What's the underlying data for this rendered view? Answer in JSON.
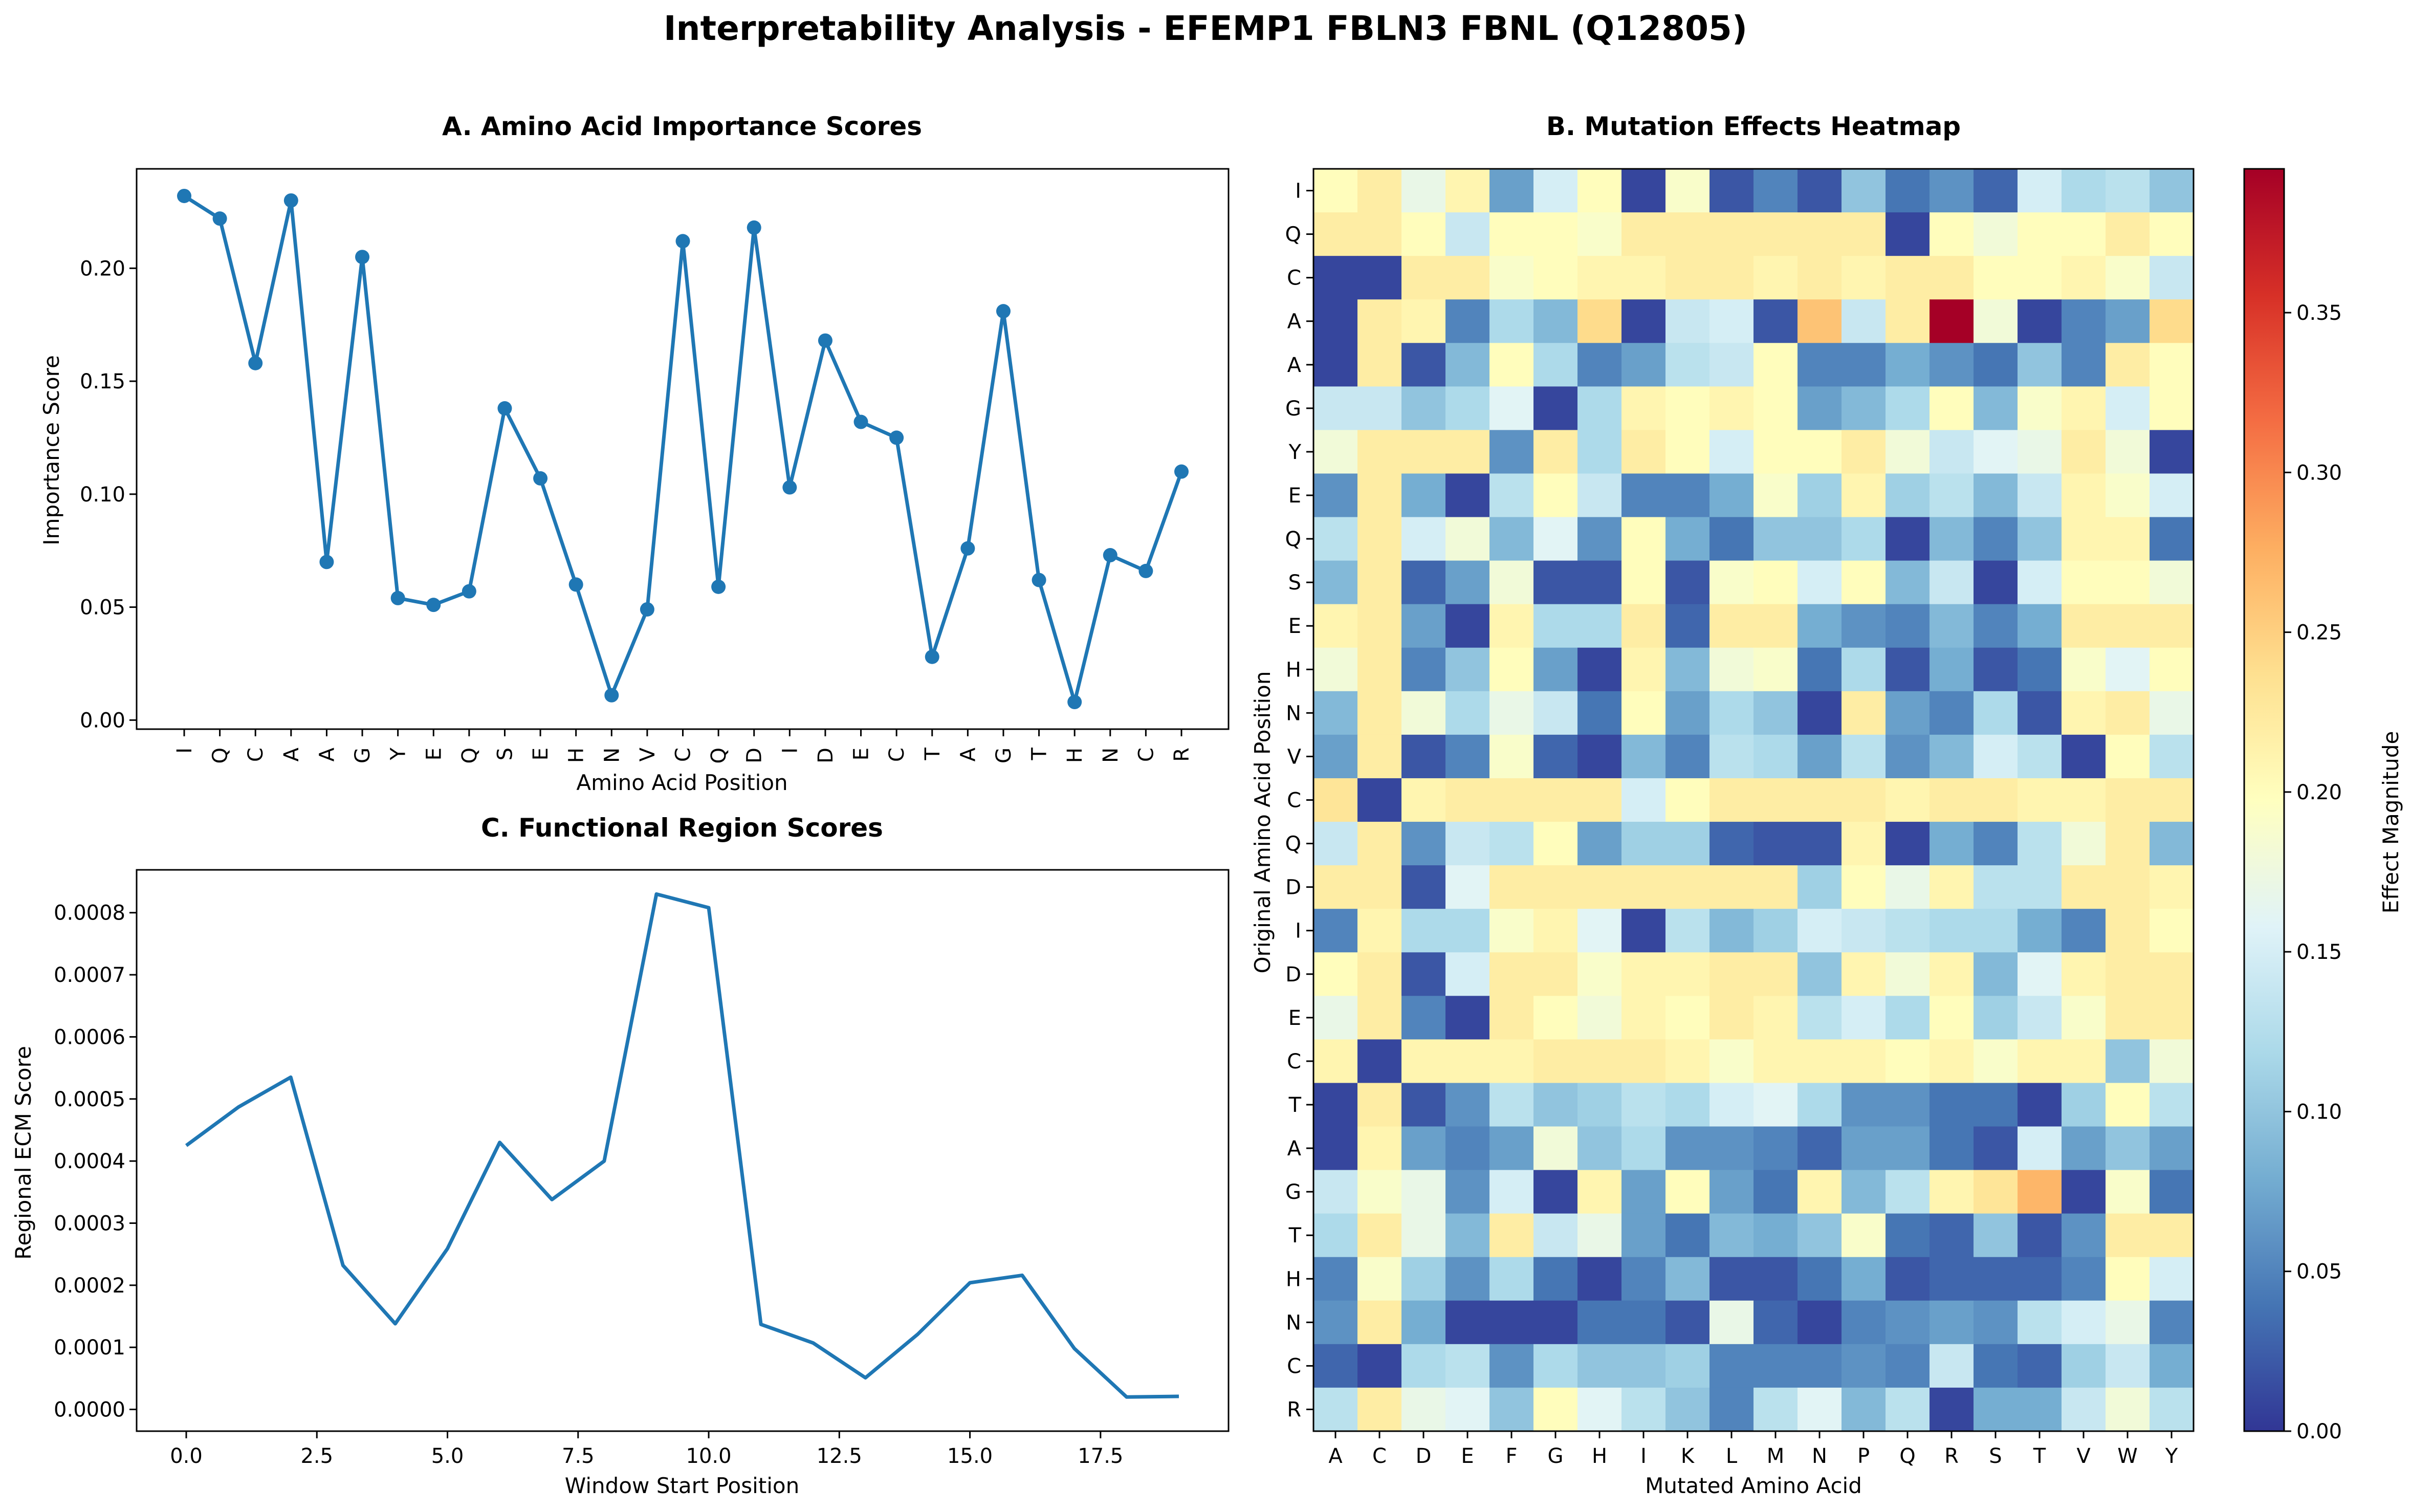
{
  "suptitle": "Interpretability Analysis - EFEMP1 FBLN3 FBNL (Q12805)",
  "chart_data": [
    {
      "type": "line",
      "title": "A. Amino Acid Importance Scores",
      "xlabel": "Amino Acid Position",
      "ylabel": "Importance Score",
      "categories": [
        "I",
        "Q",
        "C",
        "A",
        "A",
        "G",
        "Y",
        "E",
        "Q",
        "S",
        "E",
        "H",
        "N",
        "V",
        "C",
        "Q",
        "D",
        "I",
        "D",
        "E",
        "C",
        "T",
        "A",
        "G",
        "T",
        "H",
        "N",
        "C",
        "R"
      ],
      "values": [
        0.232,
        0.222,
        0.158,
        0.23,
        0.07,
        0.205,
        0.054,
        0.051,
        0.057,
        0.138,
        0.107,
        0.06,
        0.011,
        0.049,
        0.212,
        0.059,
        0.218,
        0.103,
        0.168,
        0.132,
        0.125,
        0.028,
        0.076,
        0.181,
        0.062,
        0.008,
        0.073,
        0.066,
        0.11
      ],
      "ylim": [
        -0.004,
        0.244
      ],
      "yticks": [
        0.0,
        0.05,
        0.1,
        0.15,
        0.2
      ],
      "ytick_labels": [
        "0.00",
        "0.05",
        "0.10",
        "0.15",
        "0.20"
      ],
      "color": "#1f77b4",
      "markers": true
    },
    {
      "type": "line",
      "title": "C. Functional Region Scores",
      "xlabel": "Window Start Position",
      "ylabel": "Regional ECM Score",
      "x": [
        0,
        1,
        2,
        3,
        4,
        5,
        6,
        7,
        8,
        9,
        10,
        11,
        12,
        13,
        14,
        15,
        16,
        17,
        18,
        19
      ],
      "values": [
        0.000425,
        0.000487,
        0.000535,
        0.000232,
        0.000138,
        0.000259,
        0.00043,
        0.000338,
        0.0004,
        0.00083,
        0.000808,
        0.000137,
        0.000107,
        5.1e-05,
        0.000121,
        0.000204,
        0.000216,
        9.8e-05,
        2e-05,
        2.1e-05
      ],
      "xlim": [
        -0.95,
        19.95
      ],
      "ylim": [
        -3.5e-05,
        0.000869
      ],
      "xticks": [
        0.0,
        2.5,
        5.0,
        7.5,
        10.0,
        12.5,
        15.0,
        17.5
      ],
      "xtick_labels": [
        "0.0",
        "2.5",
        "5.0",
        "7.5",
        "10.0",
        "12.5",
        "15.0",
        "17.5"
      ],
      "yticks": [
        0.0,
        0.0001,
        0.0002,
        0.0003,
        0.0004,
        0.0005,
        0.0006,
        0.0007,
        0.0008
      ],
      "ytick_labels": [
        "0.0000",
        "0.0001",
        "0.0002",
        "0.0003",
        "0.0004",
        "0.0005",
        "0.0006",
        "0.0007",
        "0.0008"
      ],
      "color": "#1f77b4",
      "markers": false
    },
    {
      "type": "heatmap",
      "title": "B. Mutation Effects Heatmap",
      "xlabel": "Mutated Amino Acid",
      "ylabel": "Original Amino Acid Position",
      "colorbar_label": "Effect Magnitude",
      "colormap": "RdYlBu_r",
      "vmin": 0.0,
      "vmax": 0.395,
      "colorbar_ticks": [
        0.0,
        0.05,
        0.1,
        0.15,
        0.2,
        0.25,
        0.3,
        0.35
      ],
      "colorbar_tick_labels": [
        "0.00",
        "0.05",
        "0.10",
        "0.15",
        "0.20",
        "0.25",
        "0.30",
        "0.35"
      ],
      "x_categories": [
        "A",
        "C",
        "D",
        "E",
        "F",
        "G",
        "H",
        "I",
        "K",
        "L",
        "M",
        "N",
        "P",
        "Q",
        "R",
        "S",
        "T",
        "V",
        "W",
        "Y"
      ],
      "y_categories": [
        "I",
        "Q",
        "C",
        "A",
        "A",
        "G",
        "Y",
        "E",
        "Q",
        "S",
        "E",
        "H",
        "N",
        "V",
        "C",
        "Q",
        "D",
        "I",
        "D",
        "E",
        "C",
        "T",
        "A",
        "G",
        "T",
        "H",
        "N",
        "C",
        "R"
      ],
      "z": [
        [
          0.2,
          0.22,
          0.17,
          0.21,
          0.07,
          0.15,
          0.2,
          0.01,
          0.19,
          0.02,
          0.05,
          0.02,
          0.1,
          0.04,
          0.06,
          0.03,
          0.15,
          0.12,
          0.13,
          0.1
        ],
        [
          0.22,
          0.22,
          0.2,
          0.14,
          0.2,
          0.2,
          0.19,
          0.22,
          0.22,
          0.22,
          0.22,
          0.22,
          0.22,
          0.01,
          0.2,
          0.18,
          0.2,
          0.2,
          0.22,
          0.2
        ],
        [
          0.01,
          0.01,
          0.22,
          0.22,
          0.19,
          0.2,
          0.21,
          0.21,
          0.22,
          0.22,
          0.21,
          0.22,
          0.21,
          0.22,
          0.22,
          0.2,
          0.2,
          0.21,
          0.19,
          0.14
        ],
        [
          0.01,
          0.22,
          0.21,
          0.05,
          0.12,
          0.09,
          0.24,
          0.01,
          0.14,
          0.15,
          0.02,
          0.26,
          0.14,
          0.22,
          0.4,
          0.18,
          0.01,
          0.05,
          0.07,
          0.24
        ],
        [
          0.01,
          0.22,
          0.02,
          0.09,
          0.2,
          0.12,
          0.05,
          0.07,
          0.13,
          0.14,
          0.2,
          0.05,
          0.05,
          0.08,
          0.06,
          0.04,
          0.1,
          0.05,
          0.22,
          0.2
        ],
        [
          0.14,
          0.14,
          0.1,
          0.12,
          0.16,
          0.01,
          0.12,
          0.21,
          0.2,
          0.21,
          0.2,
          0.07,
          0.09,
          0.12,
          0.2,
          0.09,
          0.19,
          0.21,
          0.15,
          0.2
        ],
        [
          0.18,
          0.22,
          0.22,
          0.22,
          0.06,
          0.22,
          0.12,
          0.22,
          0.2,
          0.15,
          0.2,
          0.2,
          0.22,
          0.18,
          0.14,
          0.16,
          0.17,
          0.22,
          0.18,
          0.01
        ],
        [
          0.06,
          0.22,
          0.08,
          0.01,
          0.13,
          0.2,
          0.14,
          0.05,
          0.05,
          0.08,
          0.19,
          0.11,
          0.21,
          0.11,
          0.13,
          0.09,
          0.14,
          0.21,
          0.19,
          0.15
        ],
        [
          0.13,
          0.22,
          0.15,
          0.18,
          0.09,
          0.16,
          0.06,
          0.2,
          0.08,
          0.04,
          0.1,
          0.1,
          0.12,
          0.01,
          0.09,
          0.05,
          0.1,
          0.21,
          0.21,
          0.04
        ],
        [
          0.09,
          0.22,
          0.03,
          0.07,
          0.18,
          0.02,
          0.02,
          0.2,
          0.02,
          0.19,
          0.2,
          0.15,
          0.2,
          0.09,
          0.14,
          0.01,
          0.15,
          0.2,
          0.2,
          0.18
        ],
        [
          0.21,
          0.22,
          0.07,
          0.01,
          0.21,
          0.12,
          0.12,
          0.22,
          0.03,
          0.22,
          0.22,
          0.08,
          0.06,
          0.05,
          0.09,
          0.05,
          0.08,
          0.22,
          0.22,
          0.22
        ],
        [
          0.18,
          0.22,
          0.05,
          0.1,
          0.2,
          0.07,
          0.01,
          0.21,
          0.09,
          0.18,
          0.19,
          0.04,
          0.12,
          0.02,
          0.08,
          0.02,
          0.04,
          0.19,
          0.16,
          0.2
        ],
        [
          0.09,
          0.22,
          0.18,
          0.12,
          0.17,
          0.14,
          0.04,
          0.2,
          0.07,
          0.12,
          0.1,
          0.01,
          0.22,
          0.07,
          0.05,
          0.12,
          0.02,
          0.21,
          0.22,
          0.17
        ],
        [
          0.07,
          0.22,
          0.02,
          0.05,
          0.19,
          0.03,
          0.01,
          0.09,
          0.05,
          0.13,
          0.12,
          0.07,
          0.13,
          0.06,
          0.09,
          0.15,
          0.13,
          0.01,
          0.2,
          0.13
        ],
        [
          0.23,
          0.01,
          0.21,
          0.22,
          0.22,
          0.22,
          0.22,
          0.15,
          0.2,
          0.22,
          0.22,
          0.22,
          0.22,
          0.21,
          0.22,
          0.22,
          0.21,
          0.21,
          0.22,
          0.22
        ],
        [
          0.14,
          0.22,
          0.06,
          0.14,
          0.13,
          0.2,
          0.07,
          0.11,
          0.11,
          0.03,
          0.02,
          0.02,
          0.21,
          0.01,
          0.08,
          0.05,
          0.13,
          0.18,
          0.22,
          0.09
        ],
        [
          0.22,
          0.22,
          0.02,
          0.16,
          0.22,
          0.22,
          0.22,
          0.22,
          0.22,
          0.22,
          0.22,
          0.11,
          0.2,
          0.17,
          0.21,
          0.13,
          0.13,
          0.22,
          0.22,
          0.21
        ],
        [
          0.05,
          0.21,
          0.12,
          0.12,
          0.19,
          0.21,
          0.16,
          0.01,
          0.13,
          0.09,
          0.11,
          0.15,
          0.14,
          0.13,
          0.12,
          0.12,
          0.08,
          0.05,
          0.22,
          0.2
        ],
        [
          0.2,
          0.22,
          0.02,
          0.15,
          0.22,
          0.22,
          0.19,
          0.21,
          0.21,
          0.22,
          0.22,
          0.1,
          0.21,
          0.18,
          0.21,
          0.09,
          0.16,
          0.21,
          0.22,
          0.22
        ],
        [
          0.17,
          0.22,
          0.05,
          0.01,
          0.22,
          0.2,
          0.18,
          0.21,
          0.2,
          0.22,
          0.21,
          0.13,
          0.15,
          0.12,
          0.2,
          0.11,
          0.14,
          0.19,
          0.22,
          0.22
        ],
        [
          0.21,
          0.01,
          0.21,
          0.21,
          0.21,
          0.22,
          0.22,
          0.22,
          0.21,
          0.19,
          0.21,
          0.21,
          0.21,
          0.2,
          0.21,
          0.19,
          0.21,
          0.21,
          0.1,
          0.18
        ],
        [
          0.01,
          0.22,
          0.02,
          0.06,
          0.13,
          0.1,
          0.11,
          0.13,
          0.12,
          0.15,
          0.16,
          0.12,
          0.06,
          0.06,
          0.04,
          0.04,
          0.01,
          0.11,
          0.2,
          0.13
        ],
        [
          0.01,
          0.21,
          0.07,
          0.05,
          0.07,
          0.18,
          0.1,
          0.12,
          0.06,
          0.06,
          0.05,
          0.03,
          0.07,
          0.07,
          0.04,
          0.02,
          0.15,
          0.07,
          0.1,
          0.07
        ],
        [
          0.14,
          0.19,
          0.17,
          0.06,
          0.15,
          0.01,
          0.21,
          0.07,
          0.2,
          0.07,
          0.04,
          0.21,
          0.09,
          0.13,
          0.21,
          0.23,
          0.27,
          0.01,
          0.19,
          0.04
        ],
        [
          0.12,
          0.22,
          0.17,
          0.09,
          0.22,
          0.14,
          0.17,
          0.07,
          0.04,
          0.09,
          0.08,
          0.1,
          0.19,
          0.04,
          0.03,
          0.1,
          0.02,
          0.06,
          0.22,
          0.22
        ],
        [
          0.05,
          0.19,
          0.11,
          0.06,
          0.12,
          0.04,
          0.01,
          0.05,
          0.09,
          0.02,
          0.02,
          0.04,
          0.08,
          0.02,
          0.03,
          0.03,
          0.03,
          0.05,
          0.2,
          0.15
        ],
        [
          0.06,
          0.22,
          0.08,
          0.01,
          0.01,
          0.01,
          0.04,
          0.04,
          0.02,
          0.17,
          0.03,
          0.01,
          0.05,
          0.06,
          0.07,
          0.06,
          0.13,
          0.15,
          0.17,
          0.05
        ],
        [
          0.03,
          0.01,
          0.12,
          0.13,
          0.06,
          0.12,
          0.1,
          0.1,
          0.11,
          0.05,
          0.05,
          0.05,
          0.06,
          0.05,
          0.14,
          0.04,
          0.03,
          0.11,
          0.14,
          0.08
        ],
        [
          0.13,
          0.22,
          0.17,
          0.16,
          0.1,
          0.2,
          0.16,
          0.13,
          0.1,
          0.05,
          0.13,
          0.16,
          0.09,
          0.13,
          0.01,
          0.08,
          0.08,
          0.14,
          0.18,
          0.13
        ]
      ]
    }
  ]
}
